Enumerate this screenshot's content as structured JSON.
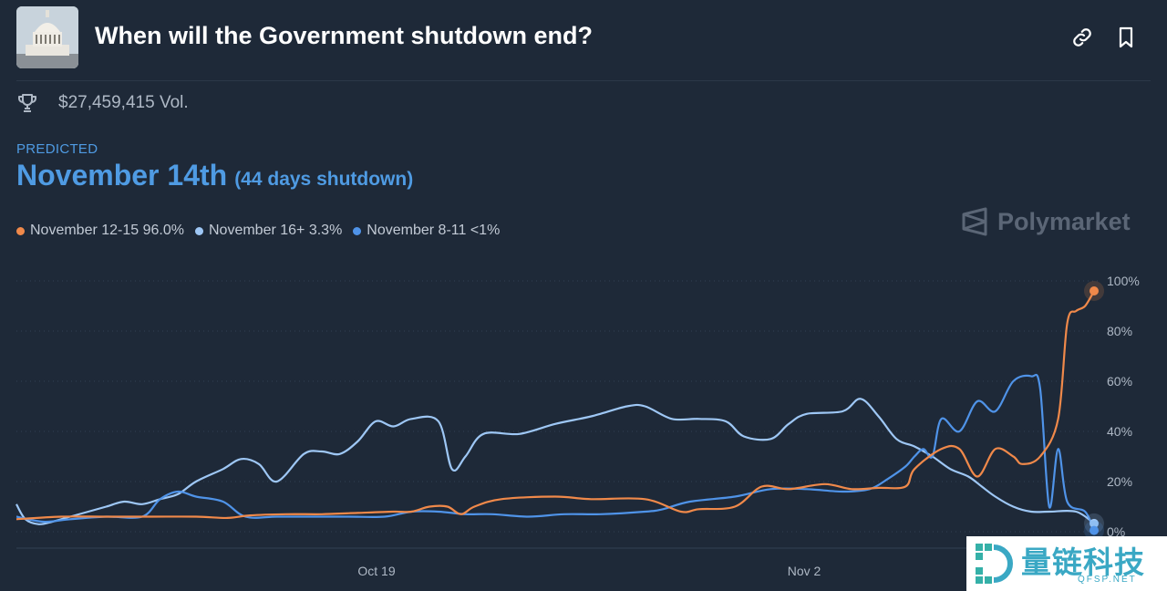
{
  "header": {
    "title": "When will the Government shutdown end?",
    "link_icon": "link-icon",
    "bookmark_icon": "bookmark-icon",
    "thumbnail": "capitol-building-image"
  },
  "volume": {
    "icon": "trophy-icon",
    "text": "$27,459,415 Vol."
  },
  "prediction": {
    "label": "PREDICTED",
    "date": "November 14th",
    "subtitle": "(44 days shutdown)"
  },
  "legend": [
    {
      "label": "November 12-15 96.0%",
      "color": "#f0894a"
    },
    {
      "label": "November 16+ 3.3%",
      "color": "#9ec7f5"
    },
    {
      "label": "November 8-11 <1%",
      "color": "#4f93e8"
    }
  ],
  "brand": {
    "name": "Polymarket",
    "icon": "polymarket-logo-icon"
  },
  "chart_data": {
    "type": "line",
    "x_ticks": [
      "Oct 19",
      "Nov 2"
    ],
    "y_ticks": [
      "100%",
      "80%",
      "60%",
      "40%",
      "20%",
      "0%"
    ],
    "ylim": [
      0,
      100
    ],
    "grid": "horizontal dotted",
    "series": [
      {
        "name": "November 12-15",
        "color": "#f0894a",
        "values": [
          [
            0,
            5
          ],
          [
            50,
            6
          ],
          [
            100,
            6
          ],
          [
            150,
            6
          ],
          [
            200,
            6
          ],
          [
            235,
            5.5
          ],
          [
            260,
            6.5
          ],
          [
            300,
            7
          ],
          [
            340,
            7
          ],
          [
            380,
            7.5
          ],
          [
            420,
            8
          ],
          [
            440,
            8
          ],
          [
            460,
            10
          ],
          [
            480,
            10
          ],
          [
            495,
            7
          ],
          [
            510,
            10
          ],
          [
            540,
            13
          ],
          [
            600,
            14
          ],
          [
            640,
            13
          ],
          [
            700,
            13
          ],
          [
            740,
            8
          ],
          [
            760,
            9
          ],
          [
            800,
            10
          ],
          [
            830,
            18
          ],
          [
            860,
            17
          ],
          [
            900,
            19
          ],
          [
            930,
            17
          ],
          [
            960,
            17.5
          ],
          [
            990,
            18
          ],
          [
            1000,
            25
          ],
          [
            1030,
            33
          ],
          [
            1050,
            33
          ],
          [
            1070,
            22
          ],
          [
            1090,
            33
          ],
          [
            1110,
            30
          ],
          [
            1120,
            27
          ],
          [
            1140,
            30
          ],
          [
            1160,
            45
          ],
          [
            1170,
            83
          ],
          [
            1180,
            88
          ],
          [
            1190,
            90
          ],
          [
            1200,
            96
          ]
        ]
      },
      {
        "name": "November 16+",
        "color": "#9ec7f5",
        "values": [
          [
            0,
            11
          ],
          [
            10,
            5
          ],
          [
            25,
            3
          ],
          [
            40,
            4
          ],
          [
            60,
            6
          ],
          [
            80,
            8
          ],
          [
            100,
            10
          ],
          [
            120,
            12
          ],
          [
            140,
            11
          ],
          [
            160,
            13
          ],
          [
            180,
            15
          ],
          [
            200,
            20
          ],
          [
            230,
            25
          ],
          [
            250,
            29
          ],
          [
            270,
            27
          ],
          [
            290,
            20
          ],
          [
            320,
            31
          ],
          [
            340,
            32
          ],
          [
            360,
            31
          ],
          [
            380,
            36
          ],
          [
            400,
            44
          ],
          [
            420,
            42
          ],
          [
            440,
            45
          ],
          [
            470,
            44
          ],
          [
            485,
            25
          ],
          [
            500,
            30
          ],
          [
            520,
            39
          ],
          [
            560,
            39
          ],
          [
            600,
            43
          ],
          [
            640,
            46
          ],
          [
            680,
            50
          ],
          [
            700,
            50
          ],
          [
            730,
            45
          ],
          [
            760,
            45
          ],
          [
            790,
            44
          ],
          [
            810,
            38
          ],
          [
            840,
            37
          ],
          [
            860,
            43
          ],
          [
            880,
            47
          ],
          [
            920,
            48
          ],
          [
            940,
            53
          ],
          [
            960,
            46
          ],
          [
            980,
            37
          ],
          [
            1000,
            34
          ],
          [
            1020,
            30
          ],
          [
            1040,
            25
          ],
          [
            1060,
            22
          ],
          [
            1075,
            18
          ],
          [
            1090,
            14
          ],
          [
            1110,
            10
          ],
          [
            1130,
            8
          ],
          [
            1150,
            8
          ],
          [
            1180,
            8
          ],
          [
            1200,
            3.3
          ]
        ]
      },
      {
        "name": "November 8-11",
        "color": "#4f93e8",
        "values": [
          [
            0,
            6
          ],
          [
            30,
            4
          ],
          [
            60,
            5
          ],
          [
            100,
            6
          ],
          [
            140,
            6
          ],
          [
            160,
            13
          ],
          [
            180,
            16
          ],
          [
            200,
            14
          ],
          [
            230,
            12
          ],
          [
            255,
            6
          ],
          [
            290,
            6
          ],
          [
            330,
            6
          ],
          [
            370,
            6
          ],
          [
            410,
            6
          ],
          [
            440,
            8
          ],
          [
            470,
            8
          ],
          [
            500,
            7
          ],
          [
            530,
            7
          ],
          [
            570,
            6
          ],
          [
            610,
            7
          ],
          [
            650,
            7
          ],
          [
            700,
            8
          ],
          [
            720,
            9
          ],
          [
            750,
            12
          ],
          [
            800,
            14
          ],
          [
            840,
            17
          ],
          [
            880,
            17
          ],
          [
            920,
            16
          ],
          [
            950,
            17
          ],
          [
            970,
            21
          ],
          [
            990,
            26
          ],
          [
            1000,
            30
          ],
          [
            1010,
            33
          ],
          [
            1020,
            30
          ],
          [
            1030,
            45
          ],
          [
            1050,
            40
          ],
          [
            1070,
            52
          ],
          [
            1090,
            48
          ],
          [
            1110,
            60
          ],
          [
            1130,
            62
          ],
          [
            1140,
            57
          ],
          [
            1150,
            10
          ],
          [
            1160,
            33
          ],
          [
            1170,
            12
          ],
          [
            1190,
            8
          ],
          [
            1200,
            0.5
          ]
        ]
      }
    ]
  }
}
